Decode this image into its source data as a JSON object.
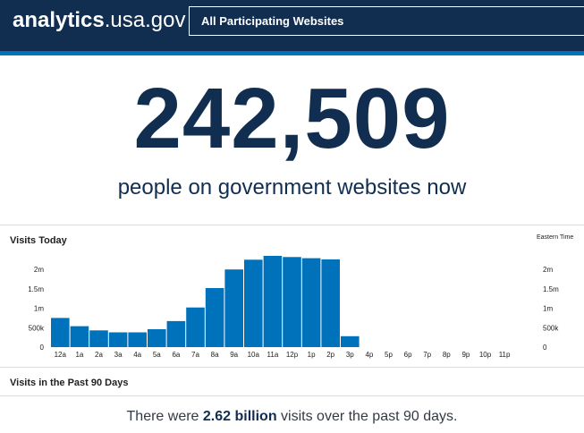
{
  "header": {
    "logo_bold": "analytics",
    "logo_domain": ".usa.gov",
    "site_selector_value": "All Participating Websites"
  },
  "realtime": {
    "count": "242,509",
    "caption": "people on government websites now"
  },
  "visits_today": {
    "title": "Visits Today",
    "timezone_label": "Eastern Time"
  },
  "visits_90_days": {
    "title": "Visits in the Past 90 Days",
    "summary_prefix": "There were ",
    "summary_value": "2.62 billion",
    "summary_suffix": " visits over the past 90 days."
  },
  "colors": {
    "header_bg": "#112e51",
    "accent_stripe": "#0071bb",
    "bar": "#0071bb",
    "number": "#112e51"
  },
  "chart_data": {
    "type": "bar",
    "title": "Visits Today",
    "categories": [
      "12a",
      "1a",
      "2a",
      "3a",
      "4a",
      "5a",
      "6a",
      "7a",
      "8a",
      "9a",
      "10a",
      "11a",
      "12p",
      "1p",
      "2p",
      "3p",
      "4p",
      "5p",
      "6p",
      "7p",
      "8p",
      "9p",
      "10p",
      "11p"
    ],
    "values": [
      750000,
      540000,
      430000,
      380000,
      380000,
      460000,
      670000,
      1020000,
      1520000,
      2000000,
      2250000,
      2350000,
      2320000,
      2290000,
      2260000,
      280000,
      0,
      0,
      0,
      0,
      0,
      0,
      0,
      0
    ],
    "y_ticks": [
      0,
      500000,
      1000000,
      1500000,
      2000000
    ],
    "y_tick_labels": [
      "0",
      "500k",
      "1m",
      "1.5m",
      "2m"
    ],
    "ylim": [
      0,
      2350000
    ],
    "dual_y_axis": true,
    "grid": false
  }
}
